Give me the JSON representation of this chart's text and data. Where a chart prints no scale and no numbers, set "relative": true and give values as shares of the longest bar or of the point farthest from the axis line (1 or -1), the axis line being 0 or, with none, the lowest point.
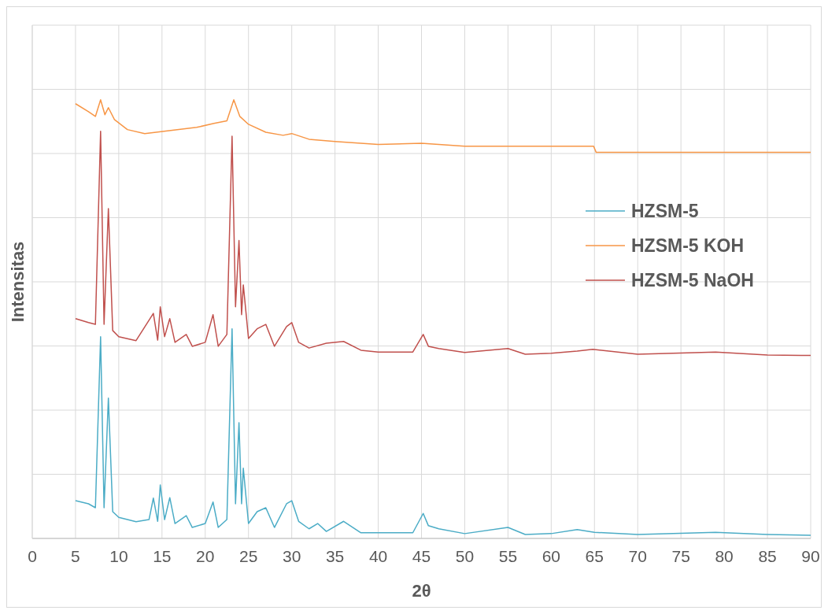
{
  "chart_data": {
    "type": "line",
    "xlabel": "2θ",
    "ylabel": "Intensitas",
    "relative": true,
    "grid": true,
    "legend": "right",
    "xlim": [
      0,
      90
    ],
    "xticks": [
      0,
      5,
      10,
      15,
      20,
      25,
      30,
      35,
      40,
      45,
      50,
      55,
      60,
      65,
      70,
      75,
      80,
      85,
      90
    ],
    "series": [
      {
        "name": "HZSM-5",
        "color": "#4bacc6",
        "x": [
          5,
          6.5,
          7.3,
          7.9,
          8.3,
          8.8,
          9.3,
          10,
          12,
          13.5,
          14,
          14.5,
          14.8,
          15.3,
          15.9,
          16.5,
          17.8,
          18.5,
          20,
          20.9,
          21.5,
          22.5,
          23.1,
          23.5,
          23.9,
          24.2,
          24.4,
          25,
          26,
          27,
          28,
          29.4,
          30,
          30.8,
          32,
          33,
          34,
          36,
          38,
          40,
          44,
          45.2,
          45.8,
          47,
          50,
          55,
          57,
          60,
          63,
          65,
          70,
          79,
          85,
          90
        ],
        "values": [
          0.086,
          0.079,
          0.07,
          0.46,
          0.07,
          0.32,
          0.061,
          0.048,
          0.038,
          0.043,
          0.092,
          0.039,
          0.122,
          0.043,
          0.093,
          0.034,
          0.052,
          0.025,
          0.034,
          0.083,
          0.025,
          0.043,
          0.478,
          0.079,
          0.264,
          0.079,
          0.16,
          0.034,
          0.061,
          0.07,
          0.025,
          0.079,
          0.086,
          0.039,
          0.022,
          0.034,
          0.016,
          0.039,
          0.013,
          0.013,
          0.013,
          0.057,
          0.029,
          0.022,
          0.011,
          0.025,
          0.009,
          0.011,
          0.02,
          0.014,
          0.009,
          0.014,
          0.009,
          0.007
        ]
      },
      {
        "name": "HZSM-5 KOH",
        "color": "#f79646",
        "x": [
          5,
          6.5,
          7.3,
          7.9,
          8.4,
          8.8,
          9.5,
          11,
          13,
          16,
          19,
          21,
          22.5,
          23.3,
          24,
          25,
          27,
          29,
          30,
          32,
          35,
          40,
          45,
          50,
          55,
          60,
          64.9,
          65.2,
          90
        ],
        "values": [
          0.991,
          0.973,
          0.962,
          1,
          0.966,
          0.982,
          0.955,
          0.932,
          0.923,
          0.93,
          0.937,
          0.946,
          0.952,
          1,
          0.962,
          0.944,
          0.926,
          0.919,
          0.923,
          0.91,
          0.905,
          0.898,
          0.901,
          0.894,
          0.894,
          0.894,
          0.894,
          0.88,
          0.88
        ]
      },
      {
        "name": "HZSM-5 NaOH",
        "color": "#c0504d",
        "x": [
          5,
          6.5,
          7.3,
          7.9,
          8.3,
          8.8,
          9.3,
          10,
          12,
          14,
          14.5,
          14.8,
          15.3,
          15.9,
          16.5,
          17.8,
          18.5,
          20,
          20.9,
          21.5,
          22.5,
          23.1,
          23.5,
          23.9,
          24.2,
          24.4,
          25,
          26,
          27,
          28,
          29.4,
          30,
          30.8,
          32,
          34,
          36,
          38,
          40,
          44,
          45.2,
          45.8,
          47,
          50,
          55,
          57,
          60,
          63,
          64.8,
          70,
          79,
          85,
          90
        ],
        "values": [
          0.501,
          0.492,
          0.488,
          0.928,
          0.488,
          0.752,
          0.474,
          0.46,
          0.451,
          0.513,
          0.452,
          0.528,
          0.46,
          0.501,
          0.447,
          0.465,
          0.438,
          0.447,
          0.51,
          0.438,
          0.465,
          0.917,
          0.528,
          0.679,
          0.51,
          0.578,
          0.456,
          0.478,
          0.488,
          0.438,
          0.483,
          0.492,
          0.447,
          0.434,
          0.445,
          0.449,
          0.429,
          0.425,
          0.425,
          0.465,
          0.438,
          0.433,
          0.424,
          0.433,
          0.42,
          0.422,
          0.427,
          0.431,
          0.42,
          0.425,
          0.418,
          0.417
        ]
      }
    ]
  }
}
